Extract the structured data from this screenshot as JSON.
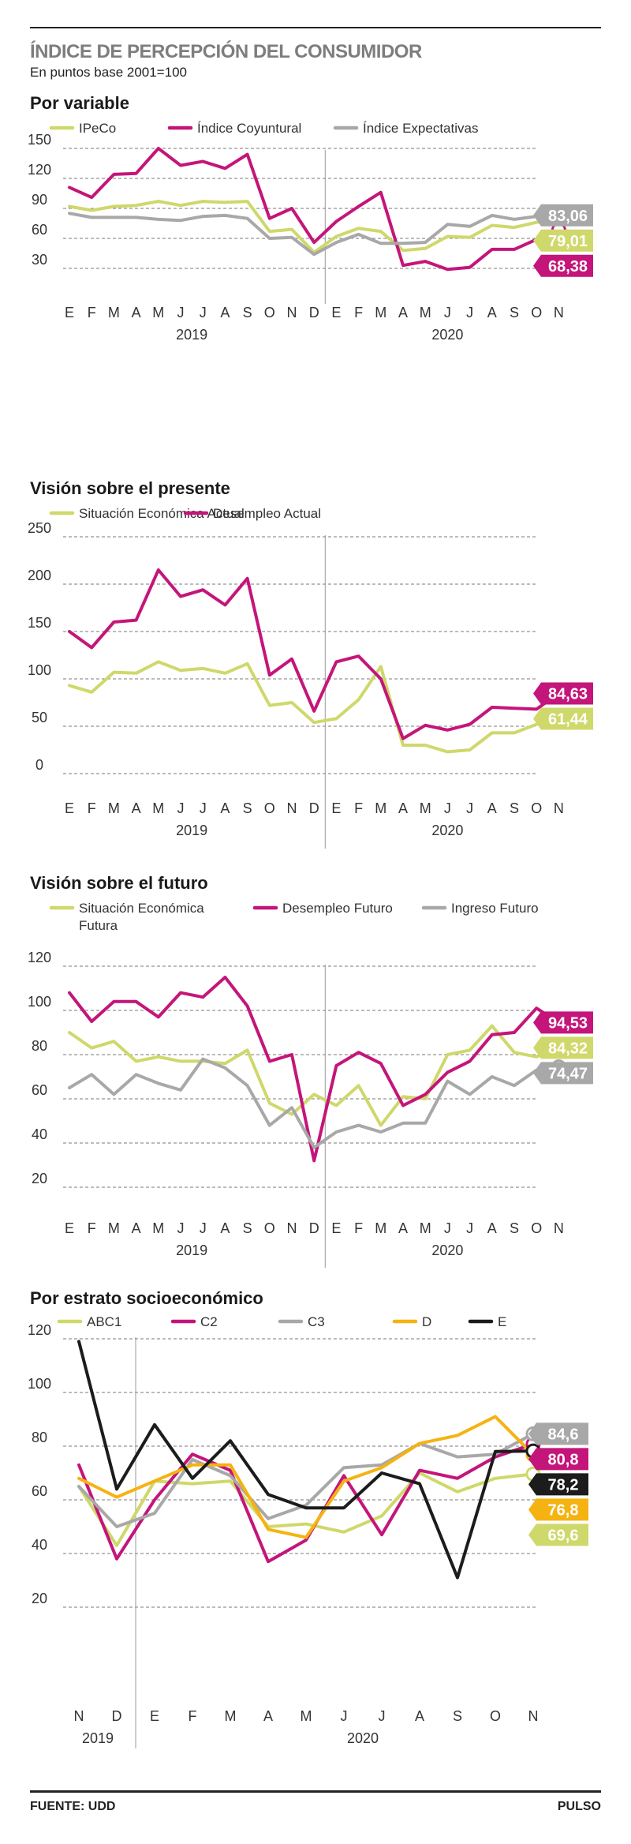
{
  "header": {
    "title": "ÍNDICE DE PERCEPCIÓN DEL CONSUMIDOR",
    "subtitle": "En puntos base 2001=100"
  },
  "footer": {
    "source": "FUENTE: UDD",
    "brand": "PULSO"
  },
  "colors": {
    "lime": "#cfd86a",
    "magenta": "#c4157a",
    "gray": "#a8a8a8",
    "orange": "#f5b312",
    "black": "#1c1c1c"
  },
  "chart_data": [
    {
      "type": "line",
      "title": "Por variable",
      "categories": [
        "E",
        "F",
        "M",
        "A",
        "M",
        "J",
        "J",
        "A",
        "S",
        "O",
        "N",
        "D",
        "E",
        "F",
        "M",
        "A",
        "M",
        "J",
        "J",
        "A",
        "S",
        "O",
        "N"
      ],
      "year_labels": [
        "2019",
        "2020"
      ],
      "ylim": [
        30,
        150
      ],
      "yticks": [
        30,
        60,
        90,
        120,
        150
      ],
      "series": [
        {
          "name": "IPeCo",
          "color": "#cfd86a",
          "values": [
            92,
            88,
            92,
            93,
            97,
            93,
            97,
            96,
            97,
            67,
            69,
            46,
            62,
            70,
            67,
            48,
            50,
            62,
            61,
            73,
            71,
            76,
            79.01
          ]
        },
        {
          "name": "Índice Coyuntural",
          "color": "#c4157a",
          "values": [
            111,
            101,
            124,
            125,
            150,
            133,
            137,
            130,
            144,
            80,
            90,
            56,
            77,
            92,
            106,
            33,
            37,
            29,
            31,
            49,
            49,
            59,
            68.38
          ]
        },
        {
          "name": "Índice Expectativas",
          "color": "#a8a8a8",
          "values": [
            85,
            81,
            81,
            81,
            79,
            78,
            82,
            83,
            80,
            60,
            61,
            44,
            56,
            64,
            55,
            55,
            56,
            74,
            72,
            83,
            79,
            82,
            83.06
          ]
        }
      ],
      "end_labels": [
        "79,01",
        "68,38",
        "83,06"
      ]
    },
    {
      "type": "line",
      "title": "Visión sobre el presente",
      "categories": [
        "E",
        "F",
        "M",
        "A",
        "M",
        "J",
        "J",
        "A",
        "S",
        "O",
        "N",
        "D",
        "E",
        "F",
        "M",
        "A",
        "M",
        "J",
        "J",
        "A",
        "S",
        "O",
        "N"
      ],
      "year_labels": [
        "2019",
        "2020"
      ],
      "ylim": [
        0,
        250
      ],
      "yticks": [
        0,
        50,
        100,
        150,
        200,
        250
      ],
      "series": [
        {
          "name": "Situación Económica Actual",
          "color": "#cfd86a",
          "values": [
            93,
            86,
            107,
            106,
            118,
            109,
            111,
            106,
            116,
            72,
            75,
            54,
            58,
            78,
            113,
            30,
            30,
            23,
            25,
            43,
            43,
            52,
            61.44
          ]
        },
        {
          "name": "Desempleo Actual",
          "color": "#c4157a",
          "values": [
            150,
            133,
            160,
            162,
            215,
            187,
            194,
            178,
            206,
            104,
            121,
            66,
            118,
            124,
            100,
            37,
            51,
            46,
            52,
            70,
            69,
            68,
            84.63
          ]
        }
      ],
      "end_labels": [
        "61,44",
        "84,63"
      ]
    },
    {
      "type": "line",
      "title": "Visión sobre el futuro",
      "categories": [
        "E",
        "F",
        "M",
        "A",
        "M",
        "J",
        "J",
        "A",
        "S",
        "O",
        "N",
        "D",
        "E",
        "F",
        "M",
        "A",
        "M",
        "J",
        "J",
        "A",
        "S",
        "O",
        "N"
      ],
      "year_labels": [
        "2019",
        "2020"
      ],
      "ylim": [
        20,
        120
      ],
      "yticks": [
        20,
        40,
        60,
        80,
        100,
        120
      ],
      "series": [
        {
          "name": "Situación Económica Futura",
          "color": "#cfd86a",
          "values": [
            90,
            83,
            86,
            77,
            79,
            77,
            77,
            76,
            82,
            58,
            53,
            62,
            57,
            66,
            48,
            61,
            60,
            80,
            82,
            93,
            81,
            79,
            84.32
          ]
        },
        {
          "name": "Desempleo Futuro",
          "color": "#c4157a",
          "values": [
            108,
            95,
            104,
            104,
            97,
            108,
            106,
            115,
            102,
            77,
            80,
            32,
            75,
            81,
            76,
            57,
            62,
            72,
            77,
            89,
            90,
            101,
            94.53
          ]
        },
        {
          "name": "Ingreso Futuro",
          "color": "#a8a8a8",
          "values": [
            65,
            71,
            62,
            71,
            67,
            64,
            78,
            74,
            66,
            48,
            56,
            38,
            45,
            48,
            45,
            49,
            49,
            68,
            62,
            70,
            66,
            73,
            74.47
          ]
        }
      ],
      "end_labels": [
        "84,32",
        "94,53",
        "74,47"
      ]
    },
    {
      "type": "line",
      "title": "Por estrato socioeconómico",
      "categories": [
        "N",
        "D",
        "E",
        "F",
        "M",
        "A",
        "M",
        "J",
        "J",
        "A",
        "S",
        "O",
        "N"
      ],
      "year_labels": [
        "2019",
        "2020"
      ],
      "ylim": [
        20,
        120
      ],
      "yticks": [
        20,
        40,
        60,
        80,
        100,
        120
      ],
      "series": [
        {
          "name": "ABC1",
          "color": "#cfd86a",
          "values": [
            65,
            43,
            67,
            66,
            67,
            50,
            51,
            48,
            54,
            70,
            63,
            68,
            69.6
          ]
        },
        {
          "name": "C2",
          "color": "#c4157a",
          "values": [
            73,
            38,
            60,
            77,
            71,
            37,
            45,
            69,
            47,
            71,
            68,
            76,
            80.8
          ]
        },
        {
          "name": "C3",
          "color": "#a8a8a8",
          "values": [
            65,
            50,
            55,
            75,
            69,
            53,
            58,
            72,
            73,
            81,
            76,
            77,
            84.6
          ]
        },
        {
          "name": "D",
          "color": "#f5b312",
          "values": [
            68,
            61,
            67,
            73,
            73,
            49,
            46,
            67,
            72,
            81,
            84,
            91,
            76.8
          ]
        },
        {
          "name": "E",
          "color": "#1c1c1c",
          "values": [
            119,
            64,
            88,
            68,
            82,
            62,
            57,
            57,
            70,
            66,
            31,
            78,
            78.2
          ]
        }
      ],
      "end_labels": [
        "69,6",
        "80,8",
        "84,6",
        "76,8",
        "78,2"
      ]
    }
  ]
}
